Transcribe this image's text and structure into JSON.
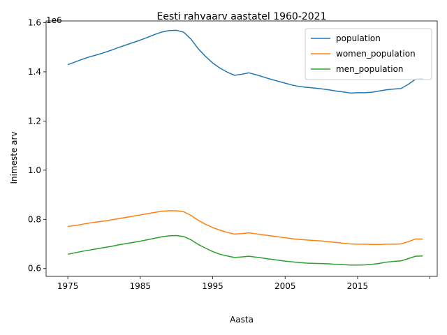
{
  "chart_data": {
    "type": "line",
    "title": "Eesti rahvaarv aastatel 1960-2021",
    "xlabel": "Aasta",
    "ylabel": "Inimeste arv",
    "y_scale_label": "1e6",
    "xlim": [
      1972,
      2026
    ],
    "ylim": [
      0.568,
      1.607
    ],
    "x_ticks": [
      1975,
      1985,
      1995,
      2005,
      2015,
      2025
    ],
    "x_tick_labels": [
      "1975",
      "1985",
      "1995",
      "2005",
      "2015",
      ""
    ],
    "y_ticks": [
      0.6,
      0.8,
      1.0,
      1.2,
      1.4,
      1.6
    ],
    "y_tick_labels": [
      "0.6",
      "0.8",
      "1.0",
      "1.2",
      "1.4",
      "1.6"
    ],
    "legend_position": "upper-right",
    "x": [
      1975,
      1976,
      1977,
      1978,
      1979,
      1980,
      1981,
      1982,
      1983,
      1984,
      1985,
      1986,
      1987,
      1988,
      1989,
      1990,
      1991,
      1992,
      1993,
      1994,
      1995,
      1996,
      1997,
      1998,
      1999,
      2000,
      2001,
      2002,
      2003,
      2004,
      2005,
      2006,
      2007,
      2008,
      2009,
      2010,
      2011,
      2012,
      2013,
      2014,
      2015,
      2016,
      2017,
      2018,
      2019,
      2020,
      2021,
      2022,
      2023,
      2024
    ],
    "series": [
      {
        "name": "population",
        "color": "#1f77b4",
        "values": [
          1.429,
          1.44,
          1.451,
          1.461,
          1.469,
          1.478,
          1.488,
          1.499,
          1.509,
          1.519,
          1.529,
          1.54,
          1.552,
          1.562,
          1.568,
          1.569,
          1.561,
          1.533,
          1.494,
          1.463,
          1.436,
          1.415,
          1.399,
          1.386,
          1.39,
          1.396,
          1.388,
          1.379,
          1.37,
          1.362,
          1.354,
          1.346,
          1.34,
          1.337,
          1.334,
          1.331,
          1.327,
          1.322,
          1.318,
          1.314,
          1.315,
          1.315,
          1.317,
          1.322,
          1.327,
          1.33,
          1.332,
          1.349,
          1.37,
          1.372
        ]
      },
      {
        "name": "women_population",
        "color": "#ff7f0e",
        "values": [
          0.771,
          0.775,
          0.78,
          0.785,
          0.789,
          0.793,
          0.798,
          0.803,
          0.808,
          0.813,
          0.818,
          0.823,
          0.828,
          0.833,
          0.835,
          0.835,
          0.831,
          0.816,
          0.796,
          0.78,
          0.767,
          0.756,
          0.747,
          0.74,
          0.742,
          0.745,
          0.741,
          0.737,
          0.733,
          0.729,
          0.725,
          0.721,
          0.718,
          0.716,
          0.714,
          0.712,
          0.709,
          0.706,
          0.703,
          0.7,
          0.699,
          0.699,
          0.698,
          0.698,
          0.699,
          0.699,
          0.7,
          0.709,
          0.72,
          0.72
        ]
      },
      {
        "name": "men_population",
        "color": "#2ca02c",
        "values": [
          0.658,
          0.664,
          0.67,
          0.675,
          0.68,
          0.685,
          0.69,
          0.696,
          0.701,
          0.706,
          0.711,
          0.717,
          0.723,
          0.729,
          0.733,
          0.734,
          0.73,
          0.717,
          0.698,
          0.683,
          0.669,
          0.658,
          0.651,
          0.645,
          0.647,
          0.65,
          0.646,
          0.642,
          0.638,
          0.634,
          0.63,
          0.627,
          0.624,
          0.622,
          0.621,
          0.62,
          0.619,
          0.617,
          0.616,
          0.614,
          0.614,
          0.615,
          0.617,
          0.621,
          0.626,
          0.629,
          0.631,
          0.64,
          0.65,
          0.651
        ]
      }
    ]
  }
}
